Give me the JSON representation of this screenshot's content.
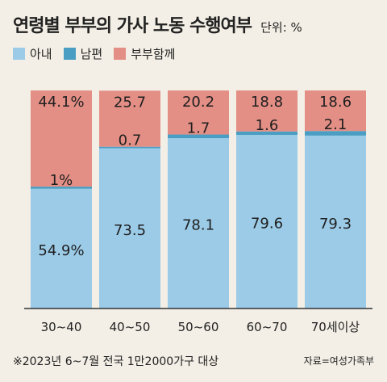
{
  "header": {
    "title": "연령별 부부의 가사 노동 수행여부",
    "unit": "단위: %"
  },
  "footer": {
    "note": "※2023년 6~7월 전국 1만2000가구 대상",
    "source": "자료=여성가족부"
  },
  "colors": {
    "wife": "#9ccbe8",
    "husband": "#4b9ec3",
    "both": "#e38f85",
    "background": "#f3efe6"
  },
  "chart_data": {
    "type": "bar",
    "stacked": true,
    "categories": [
      "30~40",
      "40~50",
      "50~60",
      "60~70",
      "70세이상"
    ],
    "series": [
      {
        "name": "아내",
        "values": [
          54.9,
          73.5,
          78.1,
          79.6,
          79.3
        ],
        "labels": [
          "54.9%",
          "73.5",
          "78.1",
          "79.6",
          "79.3"
        ]
      },
      {
        "name": "남편",
        "values": [
          1,
          0.7,
          1.7,
          1.6,
          2.1
        ],
        "labels": [
          "1%",
          "0.7",
          "1.7",
          "1.6",
          "2.1"
        ]
      },
      {
        "name": "부부함께",
        "values": [
          44.1,
          25.7,
          20.2,
          18.8,
          18.6
        ],
        "labels": [
          "44.1%",
          "25.7",
          "20.2",
          "18.8",
          "18.6"
        ]
      }
    ],
    "ylim": [
      0,
      100
    ],
    "legend_position": "top-left",
    "grid": false
  }
}
